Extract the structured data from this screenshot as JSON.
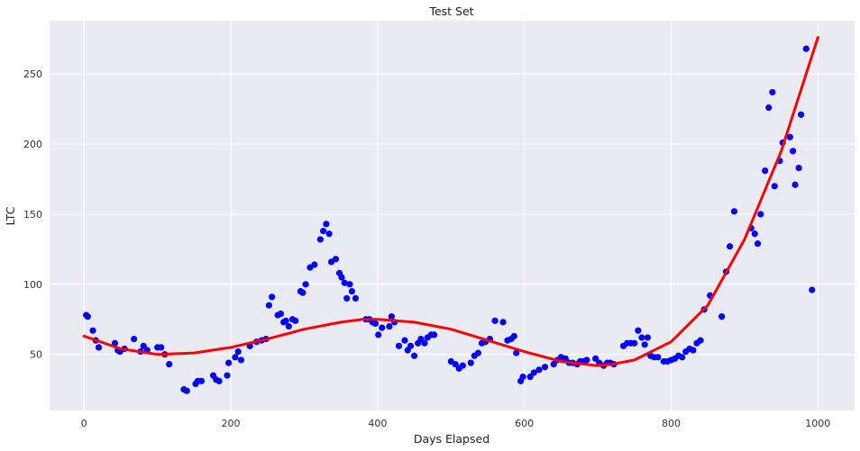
{
  "chart_data": {
    "type": "scatter",
    "title": "Test Set",
    "xlabel": "Days Elapsed",
    "ylabel": "LTC",
    "xlim": [
      -47,
      1050
    ],
    "ylim": [
      10,
      288
    ],
    "xticks": [
      0,
      200,
      400,
      600,
      800,
      1000
    ],
    "yticks": [
      50,
      100,
      150,
      200,
      250
    ],
    "grid": true,
    "colors": {
      "background": "#eaeaf2",
      "grid": "#ffffff",
      "points": "#0000ff",
      "fit": "#ff0000"
    },
    "series": [
      {
        "type": "scatter",
        "x": [
          3,
          5,
          12,
          16,
          20,
          42,
          46,
          49,
          55,
          68,
          77,
          81,
          86,
          100,
          105,
          110,
          116,
          136,
          140,
          152,
          155,
          160,
          176,
          180,
          184,
          195,
          197,
          206,
          210,
          214,
          226,
          235,
          242,
          248,
          252,
          256,
          264,
          268,
          272,
          275,
          279,
          284,
          288,
          295,
          298,
          302,
          308,
          314,
          322,
          326,
          330,
          334,
          337,
          343,
          348,
          351,
          355,
          358,
          362,
          365,
          370,
          384,
          389,
          393,
          397,
          401,
          406,
          416,
          419,
          423,
          429,
          437,
          441,
          445,
          450,
          455,
          459,
          464,
          468,
          473,
          477,
          500,
          506,
          511,
          516,
          527,
          532,
          537,
          542,
          547,
          553,
          560,
          571,
          577,
          582,
          586,
          589,
          595,
          598,
          608,
          613,
          620,
          628,
          640,
          645,
          650,
          656,
          661,
          666,
          672,
          676,
          680,
          685,
          697,
          702,
          708,
          713,
          717,
          722,
          735,
          740,
          745,
          750,
          755,
          760,
          764,
          768,
          772,
          777,
          782,
          790,
          795,
          800,
          805,
          810,
          815,
          820,
          825,
          830,
          835,
          840,
          845,
          853,
          869,
          875,
          880,
          886,
          909,
          914,
          918,
          922,
          928,
          933,
          938,
          941,
          948,
          952,
          962,
          966,
          969,
          974,
          977,
          984,
          992
        ],
        "y": [
          78,
          77,
          67,
          60,
          55,
          58,
          53,
          52,
          54,
          61,
          52,
          56,
          53,
          55,
          55,
          50,
          43,
          25,
          24,
          29,
          31,
          31,
          35,
          32,
          31,
          35,
          44,
          48,
          52,
          46,
          56,
          59,
          60,
          61,
          85,
          91,
          78,
          79,
          73,
          74,
          70,
          75,
          74,
          95,
          94,
          100,
          112,
          114,
          132,
          138,
          143,
          136,
          116,
          118,
          108,
          105,
          101,
          90,
          100,
          95,
          90,
          75,
          75,
          73,
          72,
          64,
          69,
          70,
          77,
          73,
          56,
          60,
          53,
          56,
          49,
          58,
          61,
          58,
          62,
          64,
          64,
          45,
          43,
          40,
          42,
          44,
          49,
          51,
          58,
          59,
          61,
          74,
          73,
          60,
          61,
          63,
          51,
          31,
          34,
          34,
          37,
          39,
          41,
          43,
          46,
          48,
          47,
          44,
          44,
          43,
          45,
          45,
          46,
          47,
          44,
          42,
          44,
          44,
          43,
          56,
          58,
          58,
          58,
          67,
          62,
          57,
          62,
          49,
          48,
          48,
          45,
          45,
          46,
          47,
          49,
          48,
          52,
          54,
          53,
          58,
          60,
          82,
          92,
          77,
          109,
          127,
          152,
          140,
          136,
          129,
          150,
          181,
          226,
          237,
          170,
          188,
          201,
          205,
          195,
          171,
          183,
          221,
          268,
          96
        ]
      },
      {
        "type": "line",
        "name": "fit",
        "x": [
          0,
          50,
          100,
          150,
          200,
          250,
          300,
          350,
          380,
          400,
          450,
          500,
          550,
          600,
          650,
          700,
          720,
          750,
          800,
          850,
          900,
          950,
          1000
        ],
        "y": [
          63,
          54,
          50,
          51,
          55,
          61,
          68,
          73,
          75,
          75,
          73,
          68,
          60,
          52,
          45,
          42,
          43,
          46,
          59,
          85,
          132,
          195,
          276
        ]
      }
    ]
  }
}
